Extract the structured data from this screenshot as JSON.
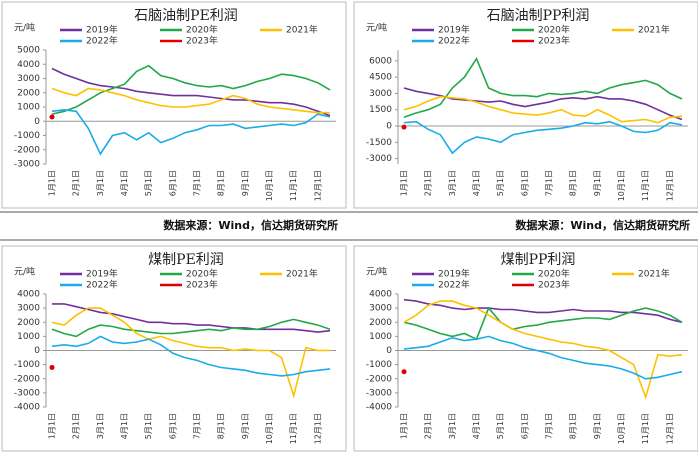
{
  "chart_data": [
    {
      "type": "line",
      "title": "石脑油制PE利润",
      "y_label": "元/吨",
      "source": "数据来源：Wind，信达期货研究所",
      "categories": [
        "1月1日",
        null,
        "2月1日",
        null,
        "3月1日",
        null,
        "4月1日",
        null,
        "5月1日",
        null,
        "6月1日",
        null,
        "7月1日",
        null,
        "8月1日",
        null,
        "9月1日",
        null,
        "10月1日",
        null,
        "11月1日",
        null,
        "12月1日",
        null
      ],
      "ylim": [
        -3000,
        5000
      ],
      "yticks": [
        -3000,
        -2000,
        -1000,
        0,
        1000,
        2000,
        3000,
        4000,
        5000
      ],
      "series": [
        {
          "name": "2019年",
          "color": "#7030a0",
          "values": [
            3700,
            3300,
            3000,
            2700,
            2500,
            2400,
            2300,
            2100,
            2000,
            1900,
            1800,
            1800,
            1800,
            1700,
            1600,
            1500,
            1500,
            1400,
            1300,
            1300,
            1200,
            1000,
            700,
            400
          ]
        },
        {
          "name": "2020年",
          "color": "#22a84a",
          "values": [
            500,
            700,
            1000,
            1500,
            2000,
            2300,
            2600,
            3500,
            3900,
            3200,
            3000,
            2700,
            2500,
            2400,
            2500,
            2300,
            2500,
            2800,
            3000,
            3300,
            3200,
            3000,
            2700,
            2200
          ]
        },
        {
          "name": "2021年",
          "color": "#ffc000",
          "values": [
            2300,
            2000,
            1800,
            2300,
            2200,
            2000,
            1800,
            1500,
            1300,
            1100,
            1000,
            1000,
            1100,
            1200,
            1500,
            1800,
            1600,
            1200,
            1000,
            900,
            800,
            700,
            600,
            600
          ]
        },
        {
          "name": "2022年",
          "color": "#1aace8",
          "values": [
            700,
            800,
            700,
            -500,
            -2300,
            -1000,
            -800,
            -1300,
            -800,
            -1500,
            -1200,
            -800,
            -600,
            -300,
            -300,
            -200,
            -500,
            -400,
            -300,
            -200,
            -300,
            -100,
            500,
            300
          ]
        },
        {
          "name": "2023年",
          "color": "#e00000",
          "values": [
            300,
            null,
            null,
            null,
            null,
            null,
            null,
            null,
            null,
            null,
            null,
            null,
            null,
            null,
            null,
            null,
            null,
            null,
            null,
            null,
            null,
            null,
            null,
            null
          ]
        }
      ]
    },
    {
      "type": "line",
      "title": "石脑油制PP利润",
      "y_label": "元/吨",
      "source": "数据来源：Wind，信达期货研究所",
      "categories": [
        "1月1日",
        null,
        "2月1日",
        null,
        "3月1日",
        null,
        "4月1日",
        null,
        "5月1日",
        null,
        "6月1日",
        null,
        "7月1日",
        null,
        "8月1日",
        null,
        "9月1日",
        null,
        "10月1日",
        null,
        "11月1日",
        null,
        "12月1日",
        null
      ],
      "ylim": [
        -3500,
        7000
      ],
      "yticks": [
        -3000,
        -1500,
        0,
        1500,
        3000,
        4500,
        6000
      ],
      "series": [
        {
          "name": "2019年",
          "color": "#7030a0",
          "values": [
            3500,
            3200,
            3000,
            2800,
            2500,
            2400,
            2300,
            2200,
            2300,
            2000,
            1800,
            2000,
            2200,
            2500,
            2600,
            2500,
            2700,
            2500,
            2500,
            2300,
            2000,
            1500,
            1000,
            600
          ]
        },
        {
          "name": "2020年",
          "color": "#22a84a",
          "values": [
            800,
            1200,
            1500,
            2000,
            3500,
            4500,
            6200,
            3500,
            3000,
            2800,
            2800,
            2700,
            3000,
            2900,
            3000,
            3200,
            3000,
            3500,
            3800,
            4000,
            4200,
            3800,
            3000,
            2500
          ]
        },
        {
          "name": "2021年",
          "color": "#ffc000",
          "values": [
            1500,
            1800,
            2300,
            2700,
            2600,
            2500,
            2200,
            1800,
            1500,
            1200,
            1100,
            1000,
            1200,
            1500,
            1000,
            900,
            1500,
            1000,
            400,
            500,
            600,
            300,
            800,
            900
          ]
        },
        {
          "name": "2022年",
          "color": "#1aace8",
          "values": [
            300,
            400,
            -300,
            -800,
            -2500,
            -1500,
            -1000,
            -1200,
            -1500,
            -800,
            -600,
            -400,
            -300,
            -200,
            0,
            300,
            200,
            400,
            0,
            -500,
            -600,
            -400,
            300,
            100
          ]
        },
        {
          "name": "2023年",
          "color": "#e00000",
          "values": [
            -100,
            null,
            null,
            null,
            null,
            null,
            null,
            null,
            null,
            null,
            null,
            null,
            null,
            null,
            null,
            null,
            null,
            null,
            null,
            null,
            null,
            null,
            null,
            null
          ]
        }
      ]
    },
    {
      "type": "line",
      "title": "煤制PE利润",
      "y_label": "元/吨",
      "categories": [
        "1月1日",
        null,
        "2月1日",
        null,
        "3月1日",
        null,
        "4月1日",
        null,
        "5月1日",
        null,
        "6月1日",
        null,
        "7月1日",
        null,
        "8月1日",
        null,
        "9月1日",
        null,
        "10月1日",
        null,
        "11月1日",
        null,
        "12月1日",
        null
      ],
      "ylim": [
        -4000,
        4000
      ],
      "yticks": [
        -4000,
        -3000,
        -2000,
        -1000,
        0,
        1000,
        2000,
        3000,
        4000
      ],
      "series": [
        {
          "name": "2019年",
          "color": "#7030a0",
          "values": [
            3300,
            3300,
            3100,
            2900,
            2700,
            2600,
            2400,
            2200,
            2000,
            2000,
            1900,
            1900,
            1800,
            1800,
            1700,
            1600,
            1600,
            1500,
            1500,
            1500,
            1500,
            1400,
            1300,
            1400
          ]
        },
        {
          "name": "2020年",
          "color": "#22a84a",
          "values": [
            1500,
            1200,
            1000,
            1500,
            1800,
            1700,
            1500,
            1400,
            1300,
            1200,
            1200,
            1300,
            1400,
            1500,
            1400,
            1600,
            1500,
            1500,
            1700,
            2000,
            2200,
            2000,
            1800,
            1500
          ]
        },
        {
          "name": "2021年",
          "color": "#ffc000",
          "values": [
            2000,
            1800,
            2500,
            3000,
            3000,
            2500,
            2000,
            1200,
            800,
            1000,
            700,
            500,
            300,
            200,
            200,
            0,
            100,
            0,
            0,
            -500,
            -3200,
            200,
            0,
            0
          ]
        },
        {
          "name": "2022年",
          "color": "#1aace8",
          "values": [
            300,
            400,
            300,
            500,
            1000,
            600,
            500,
            600,
            800,
            400,
            -200,
            -500,
            -700,
            -1000,
            -1200,
            -1300,
            -1400,
            -1600,
            -1700,
            -1800,
            -1700,
            -1500,
            -1400,
            -1300
          ]
        },
        {
          "name": "2023年",
          "color": "#e00000",
          "values": [
            -1200,
            null,
            null,
            null,
            null,
            null,
            null,
            null,
            null,
            null,
            null,
            null,
            null,
            null,
            null,
            null,
            null,
            null,
            null,
            null,
            null,
            null,
            null,
            null
          ]
        }
      ]
    },
    {
      "type": "line",
      "title": "煤制PP利润",
      "y_label": "元/吨",
      "categories": [
        "1月1日",
        null,
        "2月1日",
        null,
        "3月1日",
        null,
        "4月1日",
        null,
        "5月1日",
        null,
        "6月1日",
        null,
        "7月1日",
        null,
        "8月1日",
        null,
        "9月1日",
        null,
        "10月1日",
        null,
        "11月1日",
        null,
        "12月1日",
        null
      ],
      "ylim": [
        -4000,
        4000
      ],
      "yticks": [
        -4000,
        -3000,
        -2000,
        -1000,
        0,
        1000,
        2000,
        3000,
        4000
      ],
      "series": [
        {
          "name": "2019年",
          "color": "#7030a0",
          "values": [
            3600,
            3500,
            3300,
            3200,
            3000,
            2900,
            3000,
            3000,
            2900,
            2900,
            2800,
            2700,
            2700,
            2800,
            2900,
            2800,
            2800,
            2800,
            2700,
            2700,
            2600,
            2500,
            2200,
            2000
          ]
        },
        {
          "name": "2020年",
          "color": "#22a84a",
          "values": [
            2000,
            1800,
            1500,
            1200,
            1000,
            1200,
            800,
            3000,
            2000,
            1500,
            1700,
            1800,
            2000,
            2100,
            2200,
            2300,
            2300,
            2200,
            2500,
            2800,
            3000,
            2800,
            2500,
            2000
          ]
        },
        {
          "name": "2021年",
          "color": "#ffc000",
          "values": [
            2000,
            2500,
            3200,
            3500,
            3500,
            3200,
            3000,
            2500,
            2000,
            1500,
            1200,
            1000,
            800,
            600,
            500,
            300,
            200,
            0,
            -500,
            -1000,
            -3300,
            -300,
            -400,
            -300
          ]
        },
        {
          "name": "2022年",
          "color": "#1aace8",
          "values": [
            100,
            200,
            300,
            600,
            900,
            700,
            800,
            1000,
            700,
            500,
            200,
            0,
            -200,
            -500,
            -700,
            -900,
            -1000,
            -1100,
            -1300,
            -1600,
            -2000,
            -1900,
            -1700,
            -1500
          ]
        },
        {
          "name": "2023年",
          "color": "#e00000",
          "values": [
            -1500,
            null,
            null,
            null,
            null,
            null,
            null,
            null,
            null,
            null,
            null,
            null,
            null,
            null,
            null,
            null,
            null,
            null,
            null,
            null,
            null,
            null,
            null,
            null
          ]
        }
      ]
    }
  ]
}
